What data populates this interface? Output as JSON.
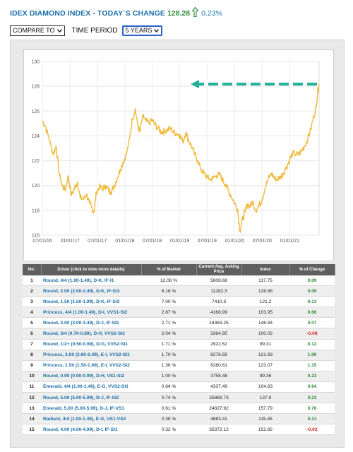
{
  "header": {
    "title": "IDEX DIAMOND INDEX - TODAY`S CHANGE",
    "today_value": "128.28",
    "today_change": "0.23%"
  },
  "controls": {
    "compare_label": "COMPARE TO",
    "time_period_label": "TIME PERIOD",
    "time_period_value": "5 YEARS"
  },
  "colors": {
    "line": "#f0b93a",
    "arrow": "#20b19a",
    "title": "#1a6ea8",
    "positive": "#2e8b3a",
    "negative": "#d42020",
    "table_header": "#5f5f5f"
  },
  "chart_data": {
    "type": "line",
    "title": "",
    "xlabel": "",
    "ylabel": "",
    "ylim": [
      116,
      130
    ],
    "yticks": [
      116,
      118,
      120,
      122,
      124,
      126,
      128,
      130
    ],
    "xtick_labels": [
      "07/01/16",
      "01/01/17",
      "07/01/17",
      "01/01/18",
      "07/01/18",
      "01/01/19",
      "07/01/19",
      "01/01/20",
      "07/01/20",
      "01/01/21"
    ],
    "x_range": [
      "2016-07-01",
      "2021-07-15"
    ],
    "annotation": "arrow pointing to latest value",
    "series": [
      {
        "points": [
          [
            "2016-07-01",
            125.2
          ],
          [
            "2016-07-20",
            124.8
          ],
          [
            "2016-08-15",
            123.8
          ],
          [
            "2016-09-10",
            122.5
          ],
          [
            "2016-10-01",
            123.2
          ],
          [
            "2016-10-20",
            121.0
          ],
          [
            "2016-11-10",
            120.0
          ],
          [
            "2016-12-01",
            119.6
          ],
          [
            "2016-12-20",
            120.8
          ],
          [
            "2017-01-10",
            119.2
          ],
          [
            "2017-02-01",
            119.8
          ],
          [
            "2017-02-20",
            120.3
          ],
          [
            "2017-03-10",
            119.0
          ],
          [
            "2017-04-01",
            118.9
          ],
          [
            "2017-04-20",
            119.3
          ],
          [
            "2017-05-10",
            118.6
          ],
          [
            "2017-05-25",
            118.2
          ],
          [
            "2017-06-10",
            117.9
          ],
          [
            "2017-06-25",
            119.5
          ],
          [
            "2017-07-15",
            119.9
          ],
          [
            "2017-08-05",
            119.7
          ],
          [
            "2017-08-25",
            120.0
          ],
          [
            "2017-09-15",
            119.6
          ],
          [
            "2017-10-01",
            119.5
          ],
          [
            "2017-10-20",
            119.9
          ],
          [
            "2017-11-10",
            120.6
          ],
          [
            "2017-12-01",
            121.3
          ],
          [
            "2017-12-20",
            121.9
          ],
          [
            "2018-01-10",
            122.5
          ],
          [
            "2018-02-01",
            123.8
          ],
          [
            "2018-02-20",
            125.4
          ],
          [
            "2018-03-10",
            126.2
          ],
          [
            "2018-03-25",
            125.0
          ],
          [
            "2018-04-10",
            124.3
          ],
          [
            "2018-05-01",
            125.6
          ],
          [
            "2018-05-20",
            125.2
          ],
          [
            "2018-06-10",
            125.0
          ],
          [
            "2018-07-01",
            125.3
          ],
          [
            "2018-07-20",
            124.9
          ],
          [
            "2018-08-10",
            124.6
          ],
          [
            "2018-09-01",
            124.3
          ],
          [
            "2018-09-20",
            124.4
          ],
          [
            "2018-10-10",
            124.5
          ],
          [
            "2018-11-01",
            124.6
          ],
          [
            "2018-11-20",
            124.3
          ],
          [
            "2018-12-10",
            124.2
          ],
          [
            "2019-01-01",
            124.1
          ],
          [
            "2019-01-20",
            123.5
          ],
          [
            "2019-02-10",
            124.3
          ],
          [
            "2019-03-01",
            123.6
          ],
          [
            "2019-03-20",
            123.2
          ],
          [
            "2019-04-10",
            122.5
          ],
          [
            "2019-05-01",
            122.0
          ],
          [
            "2019-05-20",
            121.3
          ],
          [
            "2019-06-10",
            121.0
          ],
          [
            "2019-07-01",
            120.7
          ],
          [
            "2019-07-20",
            120.5
          ],
          [
            "2019-08-10",
            120.6
          ],
          [
            "2019-09-01",
            120.8
          ],
          [
            "2019-09-20",
            120.9
          ],
          [
            "2019-10-10",
            120.5
          ],
          [
            "2019-11-01",
            120.1
          ],
          [
            "2019-11-20",
            119.6
          ],
          [
            "2019-12-10",
            119.1
          ],
          [
            "2020-01-01",
            118.6
          ],
          [
            "2020-01-20",
            118.1
          ],
          [
            "2020-02-05",
            116.3
          ],
          [
            "2020-02-20",
            117.2
          ],
          [
            "2020-03-10",
            117.9
          ],
          [
            "2020-03-25",
            118.5
          ],
          [
            "2020-04-10",
            118.3
          ],
          [
            "2020-05-01",
            118.7
          ],
          [
            "2020-05-20",
            118.0
          ],
          [
            "2020-06-10",
            118.4
          ],
          [
            "2020-07-01",
            118.9
          ],
          [
            "2020-07-20",
            119.8
          ],
          [
            "2020-08-10",
            120.5
          ],
          [
            "2020-09-01",
            121.0
          ],
          [
            "2020-09-20",
            120.6
          ],
          [
            "2020-10-10",
            120.5
          ],
          [
            "2020-11-01",
            120.7
          ],
          [
            "2020-11-20",
            121.0
          ],
          [
            "2020-12-10",
            121.5
          ],
          [
            "2021-01-01",
            122.1
          ],
          [
            "2021-01-20",
            122.6
          ],
          [
            "2021-02-10",
            122.5
          ],
          [
            "2021-03-01",
            122.5
          ],
          [
            "2021-03-20",
            122.8
          ],
          [
            "2021-04-10",
            123.2
          ],
          [
            "2021-05-01",
            123.8
          ],
          [
            "2021-05-20",
            124.5
          ],
          [
            "2021-06-10",
            125.6
          ],
          [
            "2021-06-25",
            126.3
          ],
          [
            "2021-07-05",
            127.5
          ],
          [
            "2021-07-15",
            128.2
          ]
        ]
      }
    ]
  },
  "table": {
    "headers": [
      "No.",
      "Driver (click to view more details)",
      "% of Market",
      "Current Avg. Asking Price",
      "Index",
      "% of Change"
    ],
    "rows": [
      {
        "no": "1",
        "driver": "Round, 4/4 (1.00-1.49), D-K, IF-I1",
        "market": "12.06 %",
        "price": "5808.68",
        "index": "117.75",
        "change": "0.09",
        "dir": "pos"
      },
      {
        "no": "2",
        "driver": "Round, 2.00 (2.00-2.49), D-K, IF-SI3",
        "market": "8.18 %",
        "price": "11282.3",
        "index": "128.88",
        "change": "0.09",
        "dir": "pos"
      },
      {
        "no": "3",
        "driver": "Round, 1.50 (1.50-1.99), D-K, IF-SI2",
        "market": "7.00 %",
        "price": "7410.3",
        "index": "121.2",
        "change": "0.13",
        "dir": "pos"
      },
      {
        "no": "4",
        "driver": "Princess, 4/4 (1.00-1.49), D-I, VVS1-SI2",
        "market": "2.87 %",
        "price": "4168.99",
        "index": "103.95",
        "change": "0.66",
        "dir": "pos"
      },
      {
        "no": "5",
        "driver": "Round, 3.00 (3.00-3.49), D-J, IF-SI2",
        "market": "2.71 %",
        "price": "18363.25",
        "index": "146.94",
        "change": "0.07",
        "dir": "pos"
      },
      {
        "no": "6",
        "driver": "Round, 3/4 (0.70-0.89), D-H, VVS2-SI2",
        "market": "2.04 %",
        "price": "3364.95",
        "index": "100.02",
        "change": "-0.08",
        "dir": "neg"
      },
      {
        "no": "7",
        "driver": "Round, 1/2+ (0.50-0.69), D-G, VVS2-SI1",
        "market": "1.71 %",
        "price": "2922.52",
        "index": "99.31",
        "change": "0.12",
        "dir": "pos"
      },
      {
        "no": "8",
        "driver": "Princess, 2.00 (2.00-2.49), E-I, VVS2-SI1",
        "market": "1.70 %",
        "price": "8278.59",
        "index": "121.93",
        "change": "1.00",
        "dir": "pos"
      },
      {
        "no": "9",
        "driver": "Princess, 1.50 (1.50-1.99), E-I, VVS2-SI2",
        "market": "1.36 %",
        "price": "6280.61",
        "index": "123.07",
        "change": "1.15",
        "dir": "pos"
      },
      {
        "no": "10",
        "driver": "Round, 0.90 (0.90-0.99), D-H, VS1-SI2",
        "market": "1.00 %",
        "price": "3758.48",
        "index": "99.36",
        "change": "0.23",
        "dir": "pos"
      },
      {
        "no": "11",
        "driver": "Emerald, 4/4 (1.00-1.49), E-G, VVS2-SI1",
        "market": "0.84 %",
        "price": "4337.49",
        "index": "104.83",
        "change": "0.94",
        "dir": "pos"
      },
      {
        "no": "12",
        "driver": "Round, 5.00 (5.00-5.99), D-J, IF-SI2",
        "market": "0.74 %",
        "price": "25869.73",
        "index": "137.9",
        "change": "0.23",
        "dir": "pos"
      },
      {
        "no": "13",
        "driver": "Emerald, 5.00 (5.00-5.99), D-J, IF-VS1",
        "market": "0.61 %",
        "price": "24827.92",
        "index": "157.79",
        "change": "0.76",
        "dir": "pos"
      },
      {
        "no": "14",
        "driver": "Radiant, 4/4 (1.00-1.49), E-G, VS1-VS2",
        "market": "0.38 %",
        "price": "4683.41",
        "index": "115.45",
        "change": "0.31",
        "dir": "pos"
      },
      {
        "no": "15",
        "driver": "Round, 4.00 (4.00-4.99), D-I, IF-SI1",
        "market": "0.32 %",
        "price": "35372.12",
        "index": "152.82",
        "change": "-0.02",
        "dir": "neg"
      }
    ]
  }
}
